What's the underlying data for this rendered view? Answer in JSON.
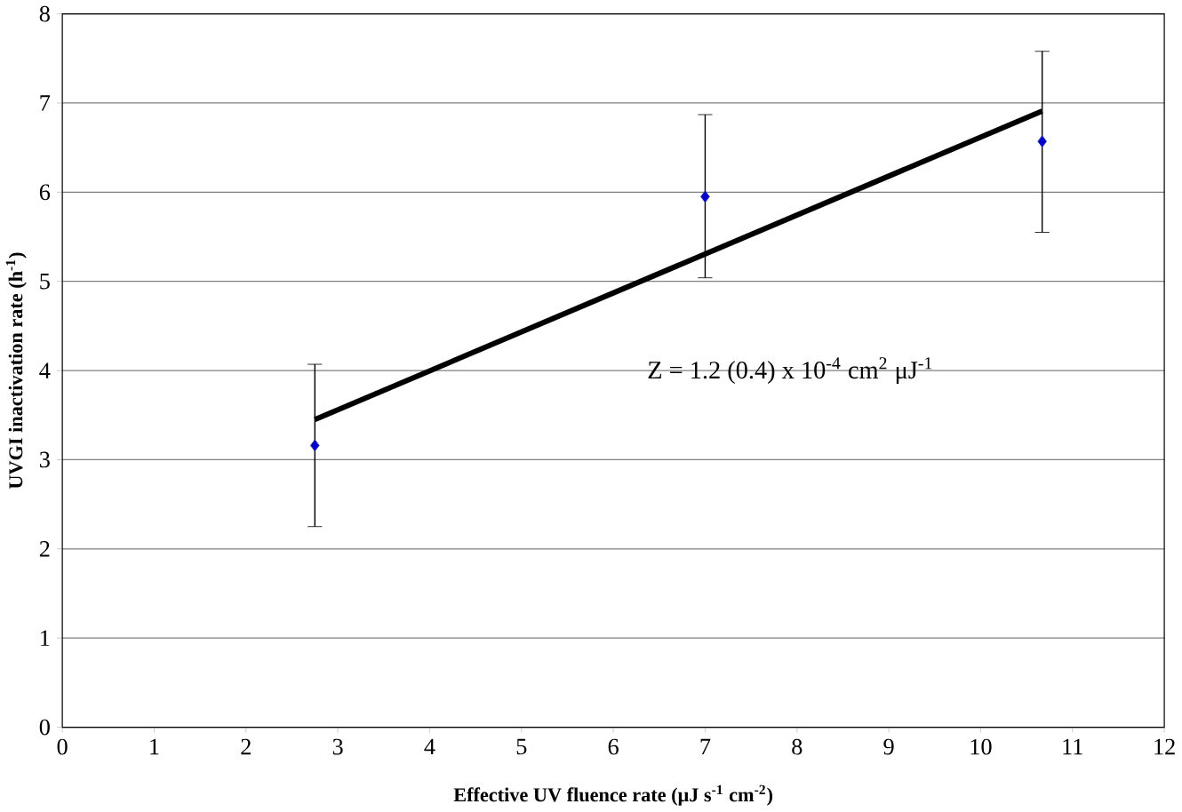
{
  "chart_data": {
    "type": "scatter",
    "xlabel": "Effective UV fluence rate (μJ s$^{-1}$ cm$^{-2}$)",
    "ylabel": "UVGI inactivation rate (h$^{-1}$)",
    "annotations": [
      "Z = 1.2 (0.4) x 10$^{-4}$ cm$^{2}$ μJ$^{-1}$"
    ],
    "x": [
      2.75,
      7.0,
      10.67
    ],
    "series": [
      {
        "color": "#2b2b9b",
        "marker": "diamond",
        "values": [
          3.16,
          5.95,
          6.57
        ],
        "errors": [
          [
            2.25,
            4.07
          ],
          [
            5.04,
            6.87
          ],
          [
            5.55,
            7.58
          ]
        ]
      },
      {
        "type": "line",
        "color": "#000000",
        "marker": "none",
        "x": [
          2.75,
          10.67
        ],
        "values": [
          3.45,
          6.91
        ]
      }
    ],
    "xlim": [
      0,
      12
    ],
    "ylim": [
      0,
      8
    ],
    "xticks": [
      0,
      1,
      2,
      3,
      4,
      5,
      6,
      7,
      8,
      9,
      10,
      11,
      12
    ],
    "yticks": [
      0,
      1,
      2,
      3,
      4,
      5,
      6,
      7,
      8
    ],
    "grid": "y"
  }
}
